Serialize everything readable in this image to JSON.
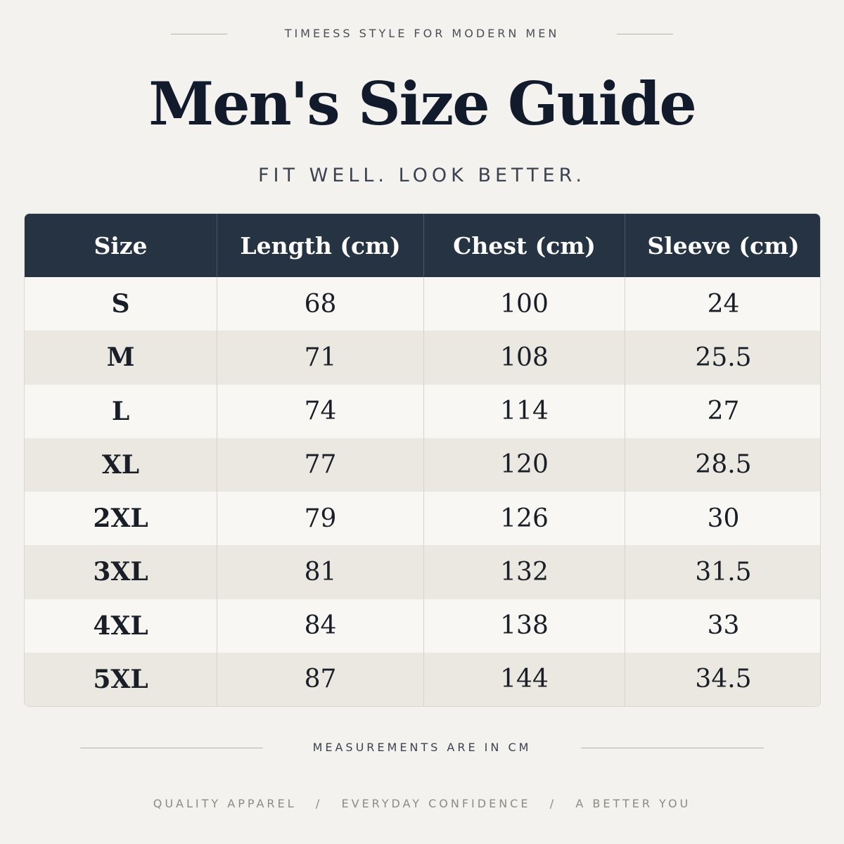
{
  "header": {
    "tagline": "TIMEESS STYLE FOR MODERN MEN",
    "title": "Men's Size Guide",
    "subtitle": "FIT WELL. LOOK BETTER."
  },
  "table": {
    "columns": [
      "Size",
      "Length (cm)",
      "Chest (cm)",
      "Sleeve (cm)"
    ],
    "rows": [
      [
        "S",
        "68",
        "100",
        "24"
      ],
      [
        "M",
        "71",
        "108",
        "25.5"
      ],
      [
        "L",
        "74",
        "114",
        "27"
      ],
      [
        "XL",
        "77",
        "120",
        "28.5"
      ],
      [
        "2XL",
        "79",
        "126",
        "30"
      ],
      [
        "3XL",
        "81",
        "132",
        "31.5"
      ],
      [
        "4XL",
        "84",
        "138",
        "33"
      ],
      [
        "5XL",
        "87",
        "144",
        "34.5"
      ]
    ]
  },
  "footer": {
    "note": "MEASUREMENTS ARE IN CM",
    "tagline": "QUALITY APPAREL   /   EVERYDAY CONFIDENCE   /   A BETTER YOU"
  }
}
